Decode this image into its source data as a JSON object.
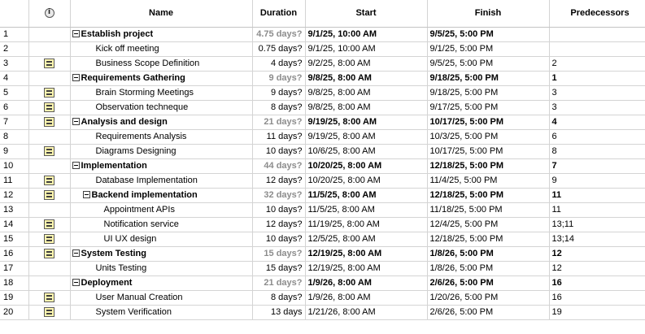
{
  "columns": {
    "indicators_icon": "info-icon",
    "name": "Name",
    "duration": "Duration",
    "start": "Start",
    "finish": "Finish",
    "predecessors": "Predecessors"
  },
  "rows": [
    {
      "id": "1",
      "name": "Establish project",
      "duration": "4.75 days?",
      "start": "9/1/25, 10:00 AM",
      "finish": "9/5/25, 5:00 PM",
      "pred": "",
      "summary": true,
      "level": 0,
      "note": false
    },
    {
      "id": "2",
      "name": "Kick off meeting",
      "duration": "0.75 days?",
      "start": "9/1/25, 10:00 AM",
      "finish": "9/1/25, 5:00 PM",
      "pred": "",
      "summary": false,
      "level": 1,
      "note": false
    },
    {
      "id": "3",
      "name": "Business Scope Definition",
      "duration": "4 days?",
      "start": "9/2/25, 8:00 AM",
      "finish": "9/5/25, 5:00 PM",
      "pred": "2",
      "summary": false,
      "level": 1,
      "note": true
    },
    {
      "id": "4",
      "name": "Requirements Gathering",
      "duration": "9 days?",
      "start": "9/8/25, 8:00 AM",
      "finish": "9/18/25, 5:00 PM",
      "pred": "1",
      "summary": true,
      "level": 0,
      "note": false
    },
    {
      "id": "5",
      "name": "Brain Storming Meetings",
      "duration": "9 days?",
      "start": "9/8/25, 8:00 AM",
      "finish": "9/18/25, 5:00 PM",
      "pred": "3",
      "summary": false,
      "level": 1,
      "note": true
    },
    {
      "id": "6",
      "name": "Observation techneque",
      "duration": "8 days?",
      "start": "9/8/25, 8:00 AM",
      "finish": "9/17/25, 5:00 PM",
      "pred": "3",
      "summary": false,
      "level": 1,
      "note": true
    },
    {
      "id": "7",
      "name": "Analysis and design",
      "duration": "21 days?",
      "start": "9/19/25, 8:00 AM",
      "finish": "10/17/25, 5:00 PM",
      "pred": "4",
      "summary": true,
      "level": 0,
      "note": true
    },
    {
      "id": "8",
      "name": "Requirements Analysis",
      "duration": "11 days?",
      "start": "9/19/25, 8:00 AM",
      "finish": "10/3/25, 5:00 PM",
      "pred": "6",
      "summary": false,
      "level": 1,
      "note": false
    },
    {
      "id": "9",
      "name": "Diagrams Designing",
      "duration": "10 days?",
      "start": "10/6/25, 8:00 AM",
      "finish": "10/17/25, 5:00 PM",
      "pred": "8",
      "summary": false,
      "level": 1,
      "note": true
    },
    {
      "id": "10",
      "name": "Implementation",
      "duration": "44 days?",
      "start": "10/20/25, 8:00 AM",
      "finish": "12/18/25, 5:00 PM",
      "pred": "7",
      "summary": true,
      "level": 0,
      "note": false
    },
    {
      "id": "11",
      "name": "Database Implementation",
      "duration": "12 days?",
      "start": "10/20/25, 8:00 AM",
      "finish": "11/4/25, 5:00 PM",
      "pred": "9",
      "summary": false,
      "level": 1,
      "note": true
    },
    {
      "id": "12",
      "name": "Backend implementation",
      "duration": "32 days?",
      "start": "11/5/25, 8:00 AM",
      "finish": "12/18/25, 5:00 PM",
      "pred": "11",
      "summary": true,
      "level": 1,
      "note": true
    },
    {
      "id": "13",
      "name": "Appointment APIs",
      "duration": "10 days?",
      "start": "11/5/25, 8:00 AM",
      "finish": "11/18/25, 5:00 PM",
      "pred": "11",
      "summary": false,
      "level": 2,
      "note": false
    },
    {
      "id": "14",
      "name": "Notification service",
      "duration": "12 days?",
      "start": "11/19/25, 8:00 AM",
      "finish": "12/4/25, 5:00 PM",
      "pred": "13;11",
      "summary": false,
      "level": 2,
      "note": true
    },
    {
      "id": "15",
      "name": "UI UX design",
      "duration": "10 days?",
      "start": "12/5/25, 8:00 AM",
      "finish": "12/18/25, 5:00 PM",
      "pred": "13;14",
      "summary": false,
      "level": 2,
      "note": true
    },
    {
      "id": "16",
      "name": "System Testing",
      "duration": "15 days?",
      "start": "12/19/25, 8:00 AM",
      "finish": "1/8/26, 5:00 PM",
      "pred": "12",
      "summary": true,
      "level": 0,
      "note": true
    },
    {
      "id": "17",
      "name": "Units Testing",
      "duration": "15 days?",
      "start": "12/19/25, 8:00 AM",
      "finish": "1/8/26, 5:00 PM",
      "pred": "12",
      "summary": false,
      "level": 1,
      "note": false
    },
    {
      "id": "18",
      "name": "Deployment",
      "duration": "21 days?",
      "start": "1/9/26, 8:00 AM",
      "finish": "2/6/26, 5:00 PM",
      "pred": "16",
      "summary": true,
      "level": 0,
      "note": false
    },
    {
      "id": "19",
      "name": "User Manual Creation",
      "duration": "8 days?",
      "start": "1/9/26, 8:00 AM",
      "finish": "1/20/26, 5:00 PM",
      "pred": "16",
      "summary": false,
      "level": 1,
      "note": true
    },
    {
      "id": "20",
      "name": "System Verification",
      "duration": "13 days",
      "start": "1/21/26, 8:00 AM",
      "finish": "2/6/26, 5:00 PM",
      "pred": "19",
      "summary": false,
      "level": 1,
      "note": true
    }
  ]
}
